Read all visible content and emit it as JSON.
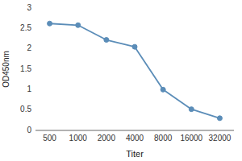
{
  "chart_data": {
    "type": "line",
    "xlabel": "Titer",
    "ylabel": "OD450nm",
    "categories": [
      "500",
      "1000",
      "2000",
      "4000",
      "8000",
      "16000",
      "32000"
    ],
    "values": [
      2.62,
      2.58,
      2.22,
      2.05,
      1.0,
      0.52,
      0.3
    ],
    "color": "#5b8db8",
    "marker": "circle",
    "ylim": [
      0,
      3
    ],
    "yticks": [
      0,
      0.5,
      1,
      1.5,
      2,
      2.5,
      3
    ],
    "grid": false
  }
}
